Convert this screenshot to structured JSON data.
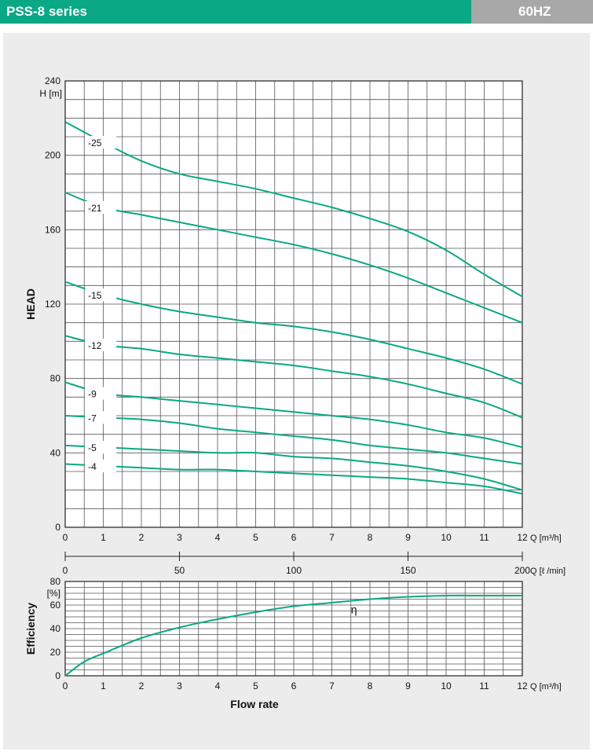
{
  "header": {
    "title": "PSS-8 series",
    "frequency": "60HZ"
  },
  "colors": {
    "header_bg": "#0aa884",
    "freq_bg": "#a8a8a8",
    "curve": "#0aa884",
    "panel": "#ececec"
  },
  "chart_data": [
    {
      "type": "line",
      "ylabel": "HEAD",
      "yunit": "H [m]",
      "xunit": "Q [m³/h]",
      "xlim": [
        0,
        12
      ],
      "ylim": [
        0,
        240
      ],
      "xticks": [
        "0",
        "1",
        "2",
        "3",
        "4",
        "5",
        "6",
        "7",
        "8",
        "9",
        "10",
        "11",
        "12"
      ],
      "yticks": [
        "0",
        "40",
        "80",
        "120",
        "160",
        "200",
        "240"
      ],
      "secondary_x": {
        "unit": "Q [ℓ /min]",
        "ticks": [
          "0",
          "50",
          "100",
          "150",
          "200"
        ],
        "lim": [
          0,
          200
        ]
      },
      "grid": true,
      "series": [
        {
          "name": "-25",
          "x": [
            0,
            1,
            2,
            3,
            4,
            5,
            6,
            7,
            8,
            9,
            10,
            11,
            12
          ],
          "y": [
            218,
            207,
            197,
            190,
            186,
            182,
            177,
            172,
            166,
            159,
            149,
            136,
            124
          ]
        },
        {
          "name": "-21",
          "x": [
            0,
            1,
            2,
            3,
            4,
            5,
            6,
            7,
            8,
            9,
            10,
            11,
            12
          ],
          "y": [
            180,
            172,
            168,
            164,
            160,
            156,
            152,
            147,
            141,
            134,
            126,
            118,
            110
          ]
        },
        {
          "name": "-15",
          "x": [
            0,
            1,
            2,
            3,
            4,
            5,
            6,
            7,
            8,
            9,
            10,
            11,
            12
          ],
          "y": [
            132,
            125,
            120,
            116,
            113,
            110,
            108,
            105,
            101,
            96,
            91,
            85,
            77
          ]
        },
        {
          "name": "-12",
          "x": [
            0,
            1,
            2,
            3,
            4,
            5,
            6,
            7,
            8,
            9,
            10,
            11,
            12
          ],
          "y": [
            103,
            98,
            96,
            93,
            91,
            89,
            87,
            84,
            81,
            77,
            72,
            67,
            59
          ]
        },
        {
          "name": "-9",
          "x": [
            0,
            1,
            2,
            3,
            4,
            5,
            6,
            7,
            8,
            9,
            10,
            11,
            12
          ],
          "y": [
            78,
            72,
            70,
            68,
            66,
            64,
            62,
            60,
            58,
            55,
            51,
            48,
            43
          ]
        },
        {
          "name": "-7",
          "x": [
            0,
            1,
            2,
            3,
            4,
            5,
            6,
            7,
            8,
            9,
            10,
            11,
            12
          ],
          "y": [
            60,
            59,
            58,
            56,
            53,
            51,
            49,
            47,
            44,
            42,
            40,
            37,
            34
          ]
        },
        {
          "name": "-5",
          "x": [
            0,
            1,
            2,
            3,
            4,
            5,
            6,
            7,
            8,
            9,
            10,
            11,
            12
          ],
          "y": [
            44,
            43,
            42,
            41,
            40,
            40,
            38,
            37,
            35,
            33,
            30,
            26,
            20
          ]
        },
        {
          "name": "-4",
          "x": [
            0,
            1,
            2,
            3,
            4,
            5,
            6,
            7,
            8,
            9,
            10,
            11,
            12
          ],
          "y": [
            34,
            33,
            32,
            31,
            31,
            30,
            29,
            28,
            27,
            26,
            24,
            22,
            18
          ]
        }
      ]
    },
    {
      "type": "line",
      "ylabel": "Efficiency",
      "yunit": "[%]",
      "xunit": "Q [m³/h]",
      "xlabel": "Flow rate",
      "xlim": [
        0,
        12
      ],
      "ylim": [
        0,
        80
      ],
      "xticks": [
        "0",
        "1",
        "2",
        "3",
        "4",
        "5",
        "6",
        "7",
        "8",
        "9",
        "10",
        "11",
        "12"
      ],
      "yticks": [
        "0",
        "20",
        "40",
        "60",
        "80"
      ],
      "grid": true,
      "series": [
        {
          "name": "η",
          "x": [
            0,
            0.5,
            1,
            2,
            3,
            4,
            5,
            6,
            7,
            8,
            9,
            10,
            11,
            12
          ],
          "y": [
            0,
            12,
            19,
            32,
            41,
            48,
            54,
            59,
            62,
            65,
            67,
            68,
            68,
            68
          ]
        }
      ]
    }
  ]
}
